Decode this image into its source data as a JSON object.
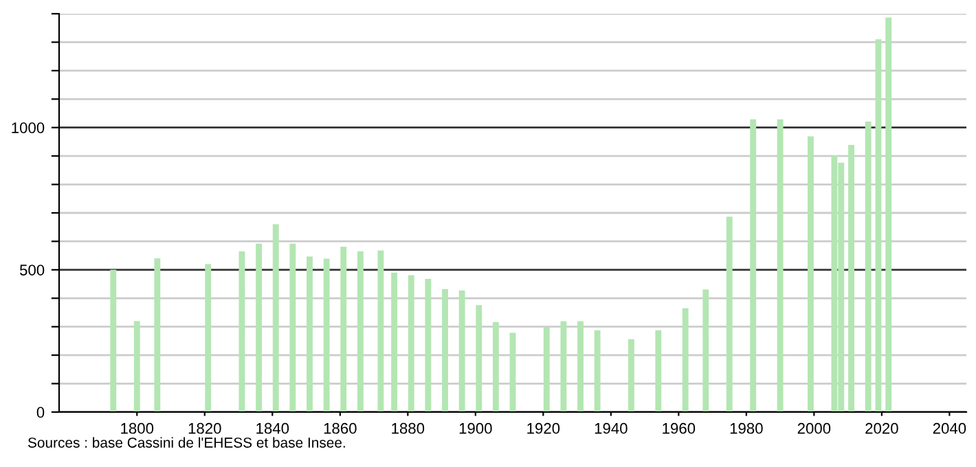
{
  "chart_data": {
    "type": "bar",
    "x": [
      1793,
      1800,
      1806,
      1821,
      1831,
      1836,
      1841,
      1846,
      1851,
      1856,
      1861,
      1866,
      1872,
      1876,
      1881,
      1886,
      1891,
      1896,
      1901,
      1906,
      1911,
      1921,
      1926,
      1931,
      1936,
      1946,
      1954,
      1962,
      1968,
      1975,
      1982,
      1990,
      1999,
      2006,
      2008,
      2011,
      2016,
      2019,
      2022
    ],
    "values": [
      500,
      320,
      540,
      520,
      565,
      592,
      660,
      592,
      547,
      539,
      581,
      565,
      568,
      490,
      481,
      468,
      432,
      427,
      376,
      316,
      279,
      298,
      319,
      319,
      287,
      256,
      287,
      365,
      431,
      687,
      1029,
      1029,
      969,
      903,
      876,
      939,
      1021,
      1310,
      1387
    ],
    "color": "#b3e6b3",
    "xlim": [
      1777,
      2045
    ],
    "ylim": [
      0,
      1400
    ],
    "xticks": [
      1800,
      1820,
      1840,
      1860,
      1880,
      1900,
      1920,
      1940,
      1960,
      1980,
      2000,
      2020,
      2040
    ],
    "yticks": [
      0,
      {
        "value": 100,
        "label": null
      },
      {
        "value": 200,
        "label": null
      },
      {
        "value": 300,
        "label": null
      },
      {
        "value": 400,
        "label": null
      },
      500,
      {
        "value": 600,
        "label": null
      },
      {
        "value": 700,
        "label": null
      },
      {
        "value": 800,
        "label": null
      },
      {
        "value": 900,
        "label": null
      },
      1000,
      {
        "value": 1100,
        "label": null
      },
      {
        "value": 1200,
        "label": null
      },
      {
        "value": 1300,
        "label": null
      },
      {
        "value": 1400,
        "label": null
      }
    ],
    "grid": "y",
    "annotations": [
      "Sources : base Cassini de l'EHESS et base Insee."
    ]
  }
}
